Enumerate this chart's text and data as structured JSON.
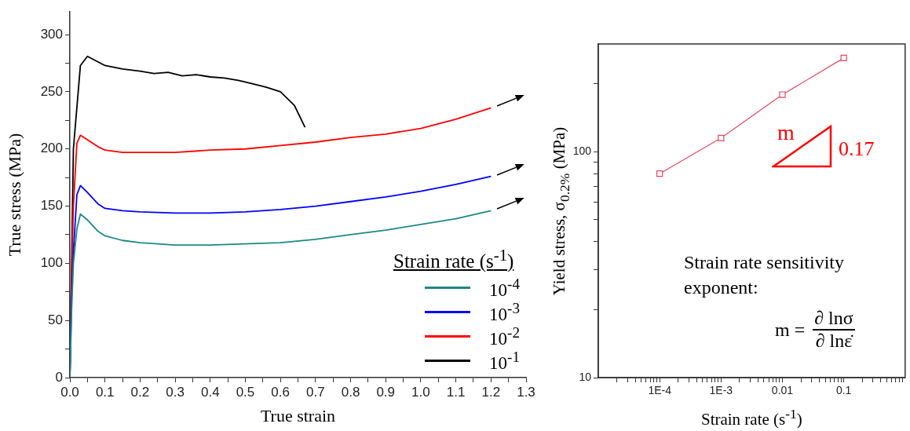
{
  "chart_data": [
    {
      "type": "line",
      "xlabel": "True strain",
      "ylabel": "True stress (MPa)",
      "legend_title": "Strain rate (s$^{-1}$)",
      "legend": "bottom right",
      "xlim": [
        0,
        1.3
      ],
      "ylim": [
        0,
        320
      ],
      "xticks": [
        {
          "value": 0,
          "label": "0.0"
        },
        {
          "value": 0.05,
          "label": null
        },
        {
          "value": 0.1,
          "label": "0.1"
        },
        {
          "value": 0.15,
          "label": null
        },
        {
          "value": 0.2,
          "label": "0.2"
        },
        {
          "value": 0.25,
          "label": null
        },
        {
          "value": 0.3,
          "label": "0.3"
        },
        {
          "value": 0.35,
          "label": null
        },
        {
          "value": 0.4,
          "label": "0.4"
        },
        {
          "value": 0.45,
          "label": null
        },
        {
          "value": 0.5,
          "label": "0.5"
        },
        {
          "value": 0.55,
          "label": null
        },
        {
          "value": 0.6,
          "label": "0.6"
        },
        {
          "value": 0.65,
          "label": null
        },
        {
          "value": 0.7,
          "label": "0.7"
        },
        {
          "value": 0.75,
          "label": null
        },
        {
          "value": 0.8,
          "label": "0.8"
        },
        {
          "value": 0.85,
          "label": null
        },
        {
          "value": 0.9,
          "label": "0.9"
        },
        {
          "value": 0.95,
          "label": null
        },
        {
          "value": 1.0,
          "label": "1.0"
        },
        {
          "value": 1.05,
          "label": null
        },
        {
          "value": 1.1,
          "label": "1.1"
        },
        {
          "value": 1.15,
          "label": null
        },
        {
          "value": 1.2,
          "label": "1.2"
        },
        {
          "value": 1.25,
          "label": null
        },
        {
          "value": 1.3,
          "label": "1.3"
        }
      ],
      "yticks": [
        0,
        {
          "value": 25,
          "label": null
        },
        50,
        {
          "value": 75,
          "label": null
        },
        100,
        {
          "value": 125,
          "label": null
        },
        150,
        {
          "value": 175,
          "label": null
        },
        200,
        {
          "value": 225,
          "label": null
        },
        250,
        {
          "value": 275,
          "label": null
        },
        300
      ],
      "series": [
        {
          "name": "10$^{-4}$",
          "color": "#1a8a82",
          "x": [
            0,
            0.005,
            0.01,
            0.02,
            0.03,
            0.05,
            0.08,
            0.1,
            0.15,
            0.2,
            0.3,
            0.4,
            0.5,
            0.6,
            0.7,
            0.8,
            0.9,
            1.0,
            1.1,
            1.2
          ],
          "values": [
            0,
            60,
            100,
            130,
            143,
            138,
            128,
            124,
            120,
            118,
            116,
            116,
            117,
            118,
            121,
            125,
            129,
            134,
            139,
            146
          ]
        },
        {
          "name": "10$^{-3}$",
          "color": "#0000ff",
          "x": [
            0,
            0.005,
            0.01,
            0.02,
            0.03,
            0.05,
            0.08,
            0.1,
            0.15,
            0.2,
            0.3,
            0.4,
            0.5,
            0.6,
            0.7,
            0.8,
            0.9,
            1.0,
            1.1,
            1.2
          ],
          "values": [
            0,
            70,
            110,
            160,
            168,
            162,
            152,
            148,
            146,
            145,
            144,
            144,
            145,
            147,
            150,
            154,
            158,
            163,
            169,
            176
          ]
        },
        {
          "name": "10$^{-2}$",
          "color": "#ff0000",
          "x": [
            0,
            0.005,
            0.01,
            0.02,
            0.03,
            0.05,
            0.08,
            0.1,
            0.15,
            0.2,
            0.3,
            0.4,
            0.5,
            0.6,
            0.7,
            0.8,
            0.9,
            1.0,
            1.1,
            1.2
          ],
          "values": [
            0,
            90,
            150,
            205,
            212,
            208,
            202,
            199,
            197,
            197,
            197,
            199,
            200,
            203,
            206,
            210,
            213,
            218,
            226,
            236
          ]
        },
        {
          "name": "10$^{-1}$",
          "color": "#000000",
          "x": [
            0,
            0.01,
            0.03,
            0.05,
            0.1,
            0.15,
            0.2,
            0.24,
            0.28,
            0.32,
            0.36,
            0.4,
            0.44,
            0.48,
            0.52,
            0.56,
            0.6,
            0.64,
            0.67
          ],
          "values": [
            0,
            200,
            273,
            281,
            273,
            270,
            268,
            266,
            267,
            264,
            265,
            263,
            262,
            260,
            257,
            254,
            250,
            238,
            219
          ]
        }
      ]
    },
    {
      "type": "line",
      "xlabel": "Strain rate (s$^{-1}$)",
      "ylabel": "Yield stress, σ$_{0.2%}$ (MPa)",
      "log": "xy",
      "marker": "square",
      "xlim": [
        1e-05,
        1
      ],
      "ylim": [
        10,
        300
      ],
      "xticks": [
        {
          "value": 2e-05,
          "label": null
        },
        {
          "value": 3e-05,
          "label": null
        },
        {
          "value": 4e-05,
          "label": null
        },
        {
          "value": 5e-05,
          "label": null
        },
        {
          "value": 6e-05,
          "label": null
        },
        {
          "value": 7e-05,
          "label": null
        },
        {
          "value": 8e-05,
          "label": null
        },
        {
          "value": 9e-05,
          "label": null
        },
        {
          "value": 0.0001,
          "label": "1E-4"
        },
        {
          "value": 0.0002,
          "label": null
        },
        {
          "value": 0.0003,
          "label": null
        },
        {
          "value": 0.0004,
          "label": null
        },
        {
          "value": 0.0005,
          "label": null
        },
        {
          "value": 0.0006,
          "label": null
        },
        {
          "value": 0.0007,
          "label": null
        },
        {
          "value": 0.0008,
          "label": null
        },
        {
          "value": 0.0009,
          "label": null
        },
        {
          "value": 0.001,
          "label": "1E-3"
        },
        {
          "value": 0.002,
          "label": null
        },
        {
          "value": 0.003,
          "label": null
        },
        {
          "value": 0.004,
          "label": null
        },
        {
          "value": 0.005,
          "label": null
        },
        {
          "value": 0.006,
          "label": null
        },
        {
          "value": 0.007,
          "label": null
        },
        {
          "value": 0.008,
          "label": null
        },
        {
          "value": 0.009,
          "label": null
        },
        0.01,
        {
          "value": 0.02,
          "label": null
        },
        {
          "value": 0.03,
          "label": null
        },
        {
          "value": 0.04,
          "label": null
        },
        {
          "value": 0.05,
          "label": null
        },
        {
          "value": 0.06,
          "label": null
        },
        {
          "value": 0.07,
          "label": null
        },
        {
          "value": 0.08,
          "label": null
        },
        {
          "value": 0.09,
          "label": null
        },
        0.1,
        {
          "value": 0.2,
          "label": null
        },
        {
          "value": 0.3,
          "label": null
        },
        {
          "value": 0.4,
          "label": null
        },
        {
          "value": 0.5,
          "label": null
        },
        {
          "value": 0.6,
          "label": null
        },
        {
          "value": 0.7,
          "label": null
        },
        {
          "value": 0.8,
          "label": null
        },
        {
          "value": 0.9,
          "label": null
        }
      ],
      "yticks": [
        10,
        {
          "value": 20,
          "label": null
        },
        {
          "value": 30,
          "label": null
        },
        {
          "value": 40,
          "label": null
        },
        {
          "value": 50,
          "label": null
        },
        {
          "value": 60,
          "label": null
        },
        {
          "value": 70,
          "label": null
        },
        {
          "value": 80,
          "label": null
        },
        {
          "value": 90,
          "label": null
        },
        100,
        {
          "value": 200,
          "label": null
        }
      ],
      "series": [
        {
          "color": "#e8485f",
          "x": [
            0.0001,
            0.001,
            0.01,
            0.1
          ],
          "values": [
            80,
            115,
            179,
            260
          ]
        }
      ],
      "annotations": [
        "m",
        "0.17",
        "Strain rate sensitivity exponent:",
        "m =",
        "∂ lnσ",
        "∂ lnε̇"
      ]
    }
  ]
}
